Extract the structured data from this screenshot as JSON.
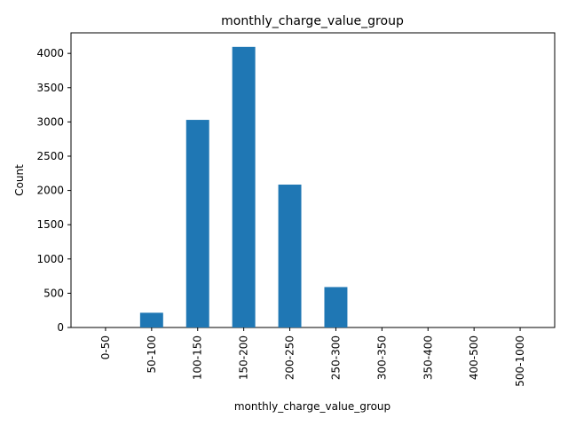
{
  "chart_data": {
    "type": "bar",
    "title": "monthly_charge_value_group",
    "xlabel": "monthly_charge_value_group",
    "ylabel": "Count",
    "categories": [
      "0-50",
      "50-100",
      "100-150",
      "150-200",
      "200-250",
      "250-300",
      "300-350",
      "350-400",
      "400-500",
      "500-1000"
    ],
    "values": [
      0,
      215,
      3030,
      4095,
      2085,
      590,
      0,
      0,
      0,
      0
    ],
    "ylim": [
      0,
      4300
    ],
    "yticks": [
      0,
      500,
      1000,
      1500,
      2000,
      2500,
      3000,
      3500,
      4000
    ],
    "grid": false,
    "bar_color": "#1f77b4"
  }
}
